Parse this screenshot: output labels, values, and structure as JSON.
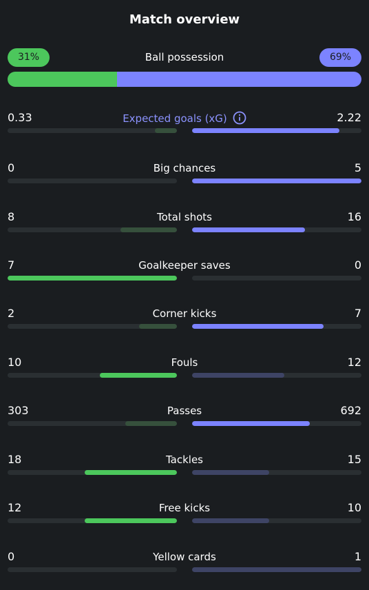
{
  "title": "Match overview",
  "colors": {
    "home_strong": "#4cc75c",
    "home_muted": "#36503c",
    "away_strong": "#7c83ff",
    "away_muted": "#3e4465",
    "track": "#2a2f32",
    "accent": "#8c93ff"
  },
  "possession": {
    "label": "Ball possession",
    "home": "31%",
    "away": "69%",
    "home_value": 31,
    "away_value": 69
  },
  "stats": [
    {
      "label": "Expected goals (xG)",
      "home": "0.33",
      "away": "2.22",
      "home_value": 0.33,
      "away_value": 2.22,
      "winner": "away",
      "info": true
    },
    {
      "label": "Big chances",
      "home": "0",
      "away": "5",
      "home_value": 0,
      "away_value": 5,
      "winner": "away"
    },
    {
      "label": "Total shots",
      "home": "8",
      "away": "16",
      "home_value": 8,
      "away_value": 16,
      "winner": "away"
    },
    {
      "label": "Goalkeeper saves",
      "home": "7",
      "away": "0",
      "home_value": 7,
      "away_value": 0,
      "winner": "home"
    },
    {
      "label": "Corner kicks",
      "home": "2",
      "away": "7",
      "home_value": 2,
      "away_value": 7,
      "winner": "away"
    },
    {
      "label": "Fouls",
      "home": "10",
      "away": "12",
      "home_value": 10,
      "away_value": 12,
      "winner": "home"
    },
    {
      "label": "Passes",
      "home": "303",
      "away": "692",
      "home_value": 303,
      "away_value": 692,
      "winner": "away"
    },
    {
      "label": "Tackles",
      "home": "18",
      "away": "15",
      "home_value": 18,
      "away_value": 15,
      "winner": "home"
    },
    {
      "label": "Free kicks",
      "home": "12",
      "away": "10",
      "home_value": 12,
      "away_value": 10,
      "winner": "home"
    },
    {
      "label": "Yellow cards",
      "home": "0",
      "away": "1",
      "home_value": 0,
      "away_value": 1,
      "winner": "home"
    }
  ]
}
